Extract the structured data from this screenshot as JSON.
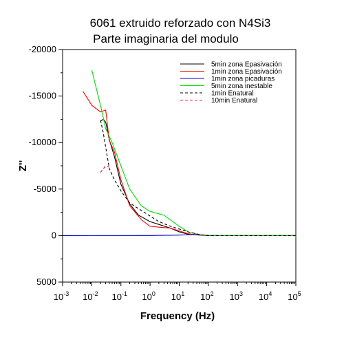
{
  "chart_data": {
    "type": "line",
    "title": "6061 extruido reforzado con N4Si3",
    "subtitle": "Parte imaginaria del modulo",
    "xlabel": "Frequency (Hz)",
    "ylabel": "Z''",
    "xscale": "log",
    "xlim": [
      0.001,
      100000
    ],
    "ylim": [
      5000,
      -20000
    ],
    "y_inverted": true,
    "grid": false,
    "legend_position": "top-right",
    "x_ticks": [
      {
        "base": "10",
        "exp": "-3"
      },
      {
        "base": "10",
        "exp": "-2"
      },
      {
        "base": "10",
        "exp": "-1"
      },
      {
        "base": "10",
        "exp": "0"
      },
      {
        "base": "10",
        "exp": "1"
      },
      {
        "base": "10",
        "exp": "2"
      },
      {
        "base": "10",
        "exp": "3"
      },
      {
        "base": "10",
        "exp": "4"
      },
      {
        "base": "10",
        "exp": "5"
      }
    ],
    "y_ticks": [
      "-20000",
      "-15000",
      "-10000",
      "-5000",
      "0",
      "5000"
    ],
    "series": [
      {
        "name": "5min zona Epasivación",
        "color": "#000000",
        "dash": "solid",
        "points": [
          [
            0.02,
            -12300
          ],
          [
            0.025,
            -12500
          ],
          [
            0.03,
            -12200
          ],
          [
            0.04,
            -10300
          ],
          [
            0.06,
            -8500
          ],
          [
            0.1,
            -5500
          ],
          [
            0.2,
            -3400
          ],
          [
            0.4,
            -2200
          ],
          [
            1,
            -1500
          ],
          [
            2,
            -1200
          ],
          [
            5,
            -800
          ],
          [
            10,
            -400
          ],
          [
            20,
            -150
          ],
          [
            50,
            -50
          ],
          [
            100,
            -10
          ],
          [
            200,
            0
          ],
          [
            100000,
            0
          ]
        ]
      },
      {
        "name": "1min zona Epasivación",
        "color": "#ff0000",
        "dash": "solid",
        "points": [
          [
            0.005,
            -15500
          ],
          [
            0.01,
            -14000
          ],
          [
            0.02,
            -13300
          ],
          [
            0.03,
            -13500
          ],
          [
            0.04,
            -10200
          ],
          [
            0.06,
            -9000
          ],
          [
            0.1,
            -6000
          ],
          [
            0.2,
            -3200
          ],
          [
            0.5,
            -1700
          ],
          [
            1,
            -1000
          ],
          [
            2,
            -900
          ],
          [
            5,
            -800
          ],
          [
            10,
            -500
          ],
          [
            20,
            -200
          ],
          [
            50,
            -50
          ],
          [
            100,
            -10
          ],
          [
            200,
            0
          ],
          [
            100000,
            0
          ]
        ]
      },
      {
        "name": "1min zona picaduras",
        "color": "#0000cc",
        "dash": "solid",
        "points": [
          [
            0.001,
            0
          ],
          [
            1,
            -10
          ],
          [
            10,
            -50
          ],
          [
            30,
            -100
          ],
          [
            100,
            -20
          ],
          [
            200,
            0
          ],
          [
            100000,
            0
          ]
        ]
      },
      {
        "name": "5min zona inestable",
        "color": "#00dd00",
        "dash": "solid",
        "points": [
          [
            0.01,
            -17800
          ],
          [
            0.02,
            -14000
          ],
          [
            0.03,
            -11500
          ],
          [
            0.05,
            -10000
          ],
          [
            0.1,
            -7500
          ],
          [
            0.2,
            -5000
          ],
          [
            0.5,
            -3200
          ],
          [
            1,
            -2600
          ],
          [
            3,
            -2200
          ],
          [
            10,
            -1000
          ],
          [
            20,
            -400
          ],
          [
            50,
            -100
          ],
          [
            100,
            -30
          ],
          [
            200,
            0
          ],
          [
            100000,
            0
          ]
        ]
      },
      {
        "name": "1min Enatural",
        "color": "#000000",
        "dash": "dashed",
        "points": [
          [
            0.02,
            -12400
          ],
          [
            0.025,
            -11000
          ],
          [
            0.04,
            -7200
          ],
          [
            0.06,
            -6000
          ],
          [
            0.1,
            -4800
          ],
          [
            0.2,
            -3500
          ],
          [
            0.5,
            -2700
          ],
          [
            1,
            -2100
          ],
          [
            2,
            -1500
          ],
          [
            5,
            -1000
          ],
          [
            10,
            -700
          ],
          [
            20,
            -400
          ],
          [
            50,
            -100
          ],
          [
            100,
            0
          ],
          [
            100000,
            0
          ]
        ]
      },
      {
        "name": "10min Enatural",
        "color": "#ff0000",
        "dash": "dashed",
        "points": [
          [
            0.02,
            -6800
          ],
          [
            0.03,
            -7500
          ],
          [
            0.04,
            -7400
          ]
        ]
      }
    ]
  }
}
